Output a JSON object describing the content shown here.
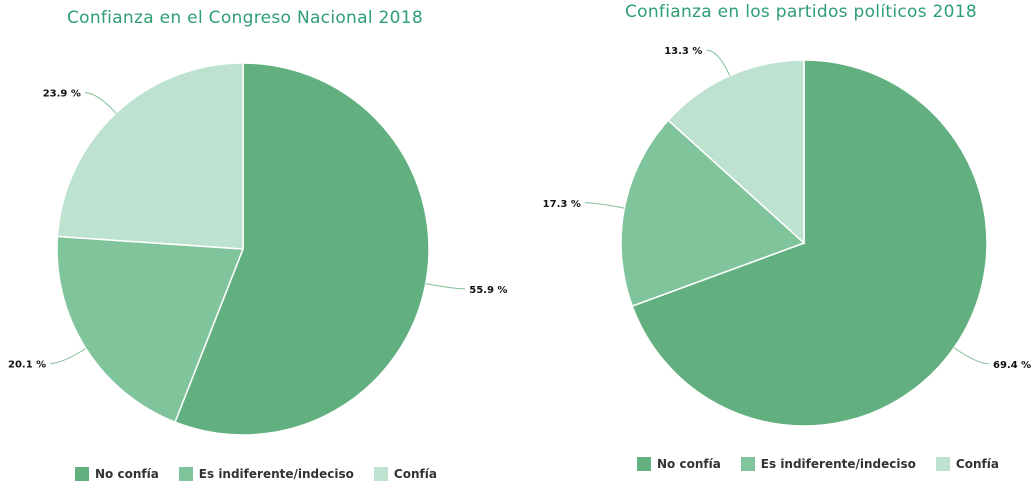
{
  "colors": {
    "title": "#2e9e73",
    "no_confia": "#62b07f",
    "indiferente": "#80c49c",
    "confia": "#bde3d0",
    "leader": "#7fbf95"
  },
  "chart_data": [
    {
      "type": "pie",
      "title": "Confianza en el Congreso Nacional 2018",
      "categories": [
        "No confía",
        "Es indiferente/indeciso",
        "Confía"
      ],
      "values": [
        55.9,
        20.1,
        23.9
      ],
      "value_labels": [
        "55.9 %",
        "20.1 %",
        "23.9 %"
      ],
      "legend_position": "bottom"
    },
    {
      "type": "pie",
      "title": "Confianza en los partidos políticos 2018",
      "categories": [
        "No confía",
        "Es indiferente/indeciso",
        "Confía"
      ],
      "values": [
        69.4,
        17.3,
        13.3
      ],
      "value_labels": [
        "69.4 %",
        "17.3 %",
        "13.3 %"
      ],
      "legend_position": "bottom"
    }
  ]
}
